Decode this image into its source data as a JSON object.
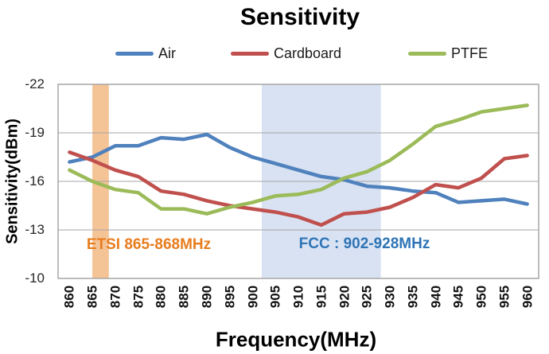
{
  "chart_data": {
    "type": "line",
    "title": "Sensitivity",
    "xlabel": "Frequency(MHz)",
    "ylabel": "Sensitivity(dBm)",
    "x": [
      860,
      865,
      870,
      875,
      880,
      885,
      890,
      895,
      900,
      905,
      910,
      915,
      920,
      925,
      930,
      935,
      940,
      945,
      950,
      955,
      960
    ],
    "y_ticks": [
      -22,
      -19,
      -16,
      -13,
      -10
    ],
    "ylim": [
      -22,
      -10
    ],
    "y_axis_direction": "inverted: -22 at top, -10 at bottom",
    "grid": "horizontal gridlines every 3 dBm",
    "legend_position": "top",
    "series": [
      {
        "name": "Air",
        "color": "#4F81BD",
        "values": [
          -17.2,
          -17.5,
          -18.2,
          -18.2,
          -18.7,
          -18.6,
          -18.9,
          -18.1,
          -17.5,
          -17.1,
          -16.7,
          -16.3,
          -16.1,
          -15.7,
          -15.6,
          -15.4,
          -15.3,
          -14.7,
          -14.8,
          -14.9,
          -14.6
        ]
      },
      {
        "name": "Cardboard",
        "color": "#C0504D",
        "values": [
          -17.8,
          -17.3,
          -16.7,
          -16.3,
          -15.4,
          -15.2,
          -14.8,
          -14.5,
          -14.3,
          -14.1,
          -13.8,
          -13.3,
          -14.0,
          -14.1,
          -14.4,
          -15.0,
          -15.8,
          -15.6,
          -16.2,
          -17.4,
          -17.6
        ]
      },
      {
        "name": "PTFE",
        "color": "#9BBB59",
        "values": [
          -16.7,
          -16.0,
          -15.5,
          -15.3,
          -14.3,
          -14.3,
          -14.0,
          -14.4,
          -14.7,
          -15.1,
          -15.2,
          -15.5,
          -16.2,
          -16.6,
          -17.3,
          -18.3,
          -19.4,
          -19.8,
          -20.3,
          -20.5,
          -20.7
        ]
      }
    ],
    "bands": [
      {
        "name": "etsi",
        "label": "ETSI 865-868MHz",
        "x_range": [
          865,
          868.6
        ],
        "fill": "#F4C396",
        "label_color": "#E87D1E"
      },
      {
        "name": "fcc",
        "label": "FCC : 902-928MHz",
        "x_range": [
          902,
          928
        ],
        "fill": "#D9E2F2",
        "label_color": "#2E75B6"
      }
    ],
    "plot_border_color": "#A6A6A6",
    "gridline_color": "#A6A6A6"
  }
}
